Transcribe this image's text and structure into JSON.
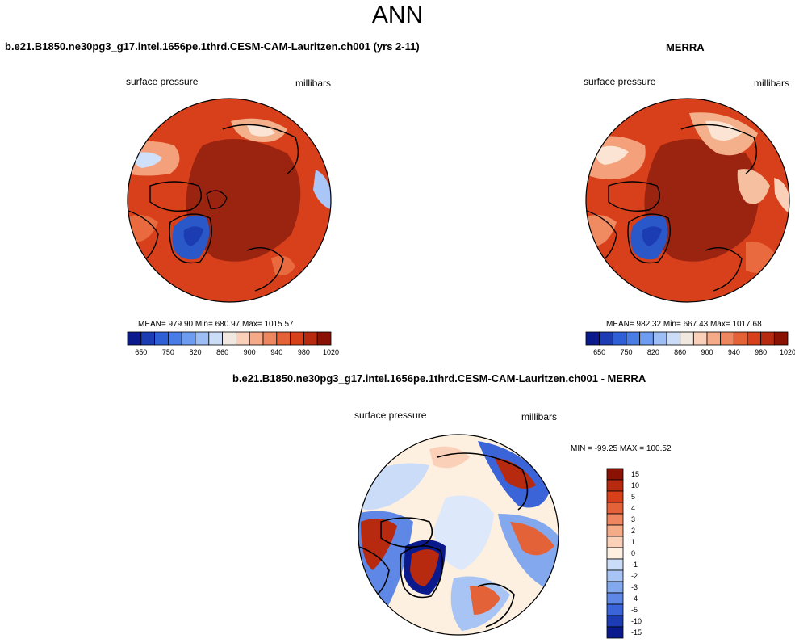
{
  "title": "ANN",
  "colors": {
    "ocean_high": "#8a1a08",
    "land_mid": "#d8401c",
    "land_light": "#e86a3e",
    "ice_blue": "#2a58c8",
    "coast": "#000000"
  },
  "panels": {
    "model": {
      "title": "b.e21.B1850.ne30pg3_g17.intel.1656pe.1thrd.CESM-CAM-Lauritzen.ch001 (yrs 2-11)",
      "variable": "surface pressure",
      "units": "millibars",
      "stats": "MEAN= 979.90  Min= 680.97  Max= 1015.57"
    },
    "obs": {
      "title": "MERRA",
      "variable": "surface pressure",
      "units": "millibars",
      "stats": "MEAN= 982.32  Min= 667.43  Max= 1017.68"
    },
    "diff": {
      "title": "b.e21.B1850.ne30pg3_g17.intel.1656pe.1thrd.CESM-CAM-Lauritzen.ch001 - MERRA",
      "variable": "surface pressure",
      "units": "millibars",
      "stats": "MIN = -99.25 MAX = 100.52"
    }
  },
  "abs_colorbar": {
    "colors": [
      "#0a1a8c",
      "#1c3cb4",
      "#2f5fd6",
      "#4a7ce6",
      "#6e9cf0",
      "#9dbdf5",
      "#cadcf8",
      "#f1e8e0",
      "#fbd0b8",
      "#f6ab88",
      "#ee8660",
      "#e46238",
      "#d8401c",
      "#b82a10",
      "#8a1204"
    ],
    "ticks": [
      "650",
      "750",
      "820",
      "860",
      "900",
      "940",
      "980",
      "1020"
    ]
  },
  "diff_colorbar": {
    "colors": [
      "#8a1204",
      "#b82a10",
      "#d8401c",
      "#e46238",
      "#ee8660",
      "#f6ab88",
      "#fbd0b8",
      "#fdf0e0",
      "#cadcf8",
      "#a8c4f4",
      "#84a8ee",
      "#5f88e6",
      "#3a64d8",
      "#1c3cb4",
      "#0a1a8c"
    ],
    "ticks": [
      "15",
      "10",
      "5",
      "4",
      "3",
      "2",
      "1",
      "0",
      "-1",
      "-2",
      "-3",
      "-4",
      "-5",
      "-10",
      "-15"
    ]
  }
}
